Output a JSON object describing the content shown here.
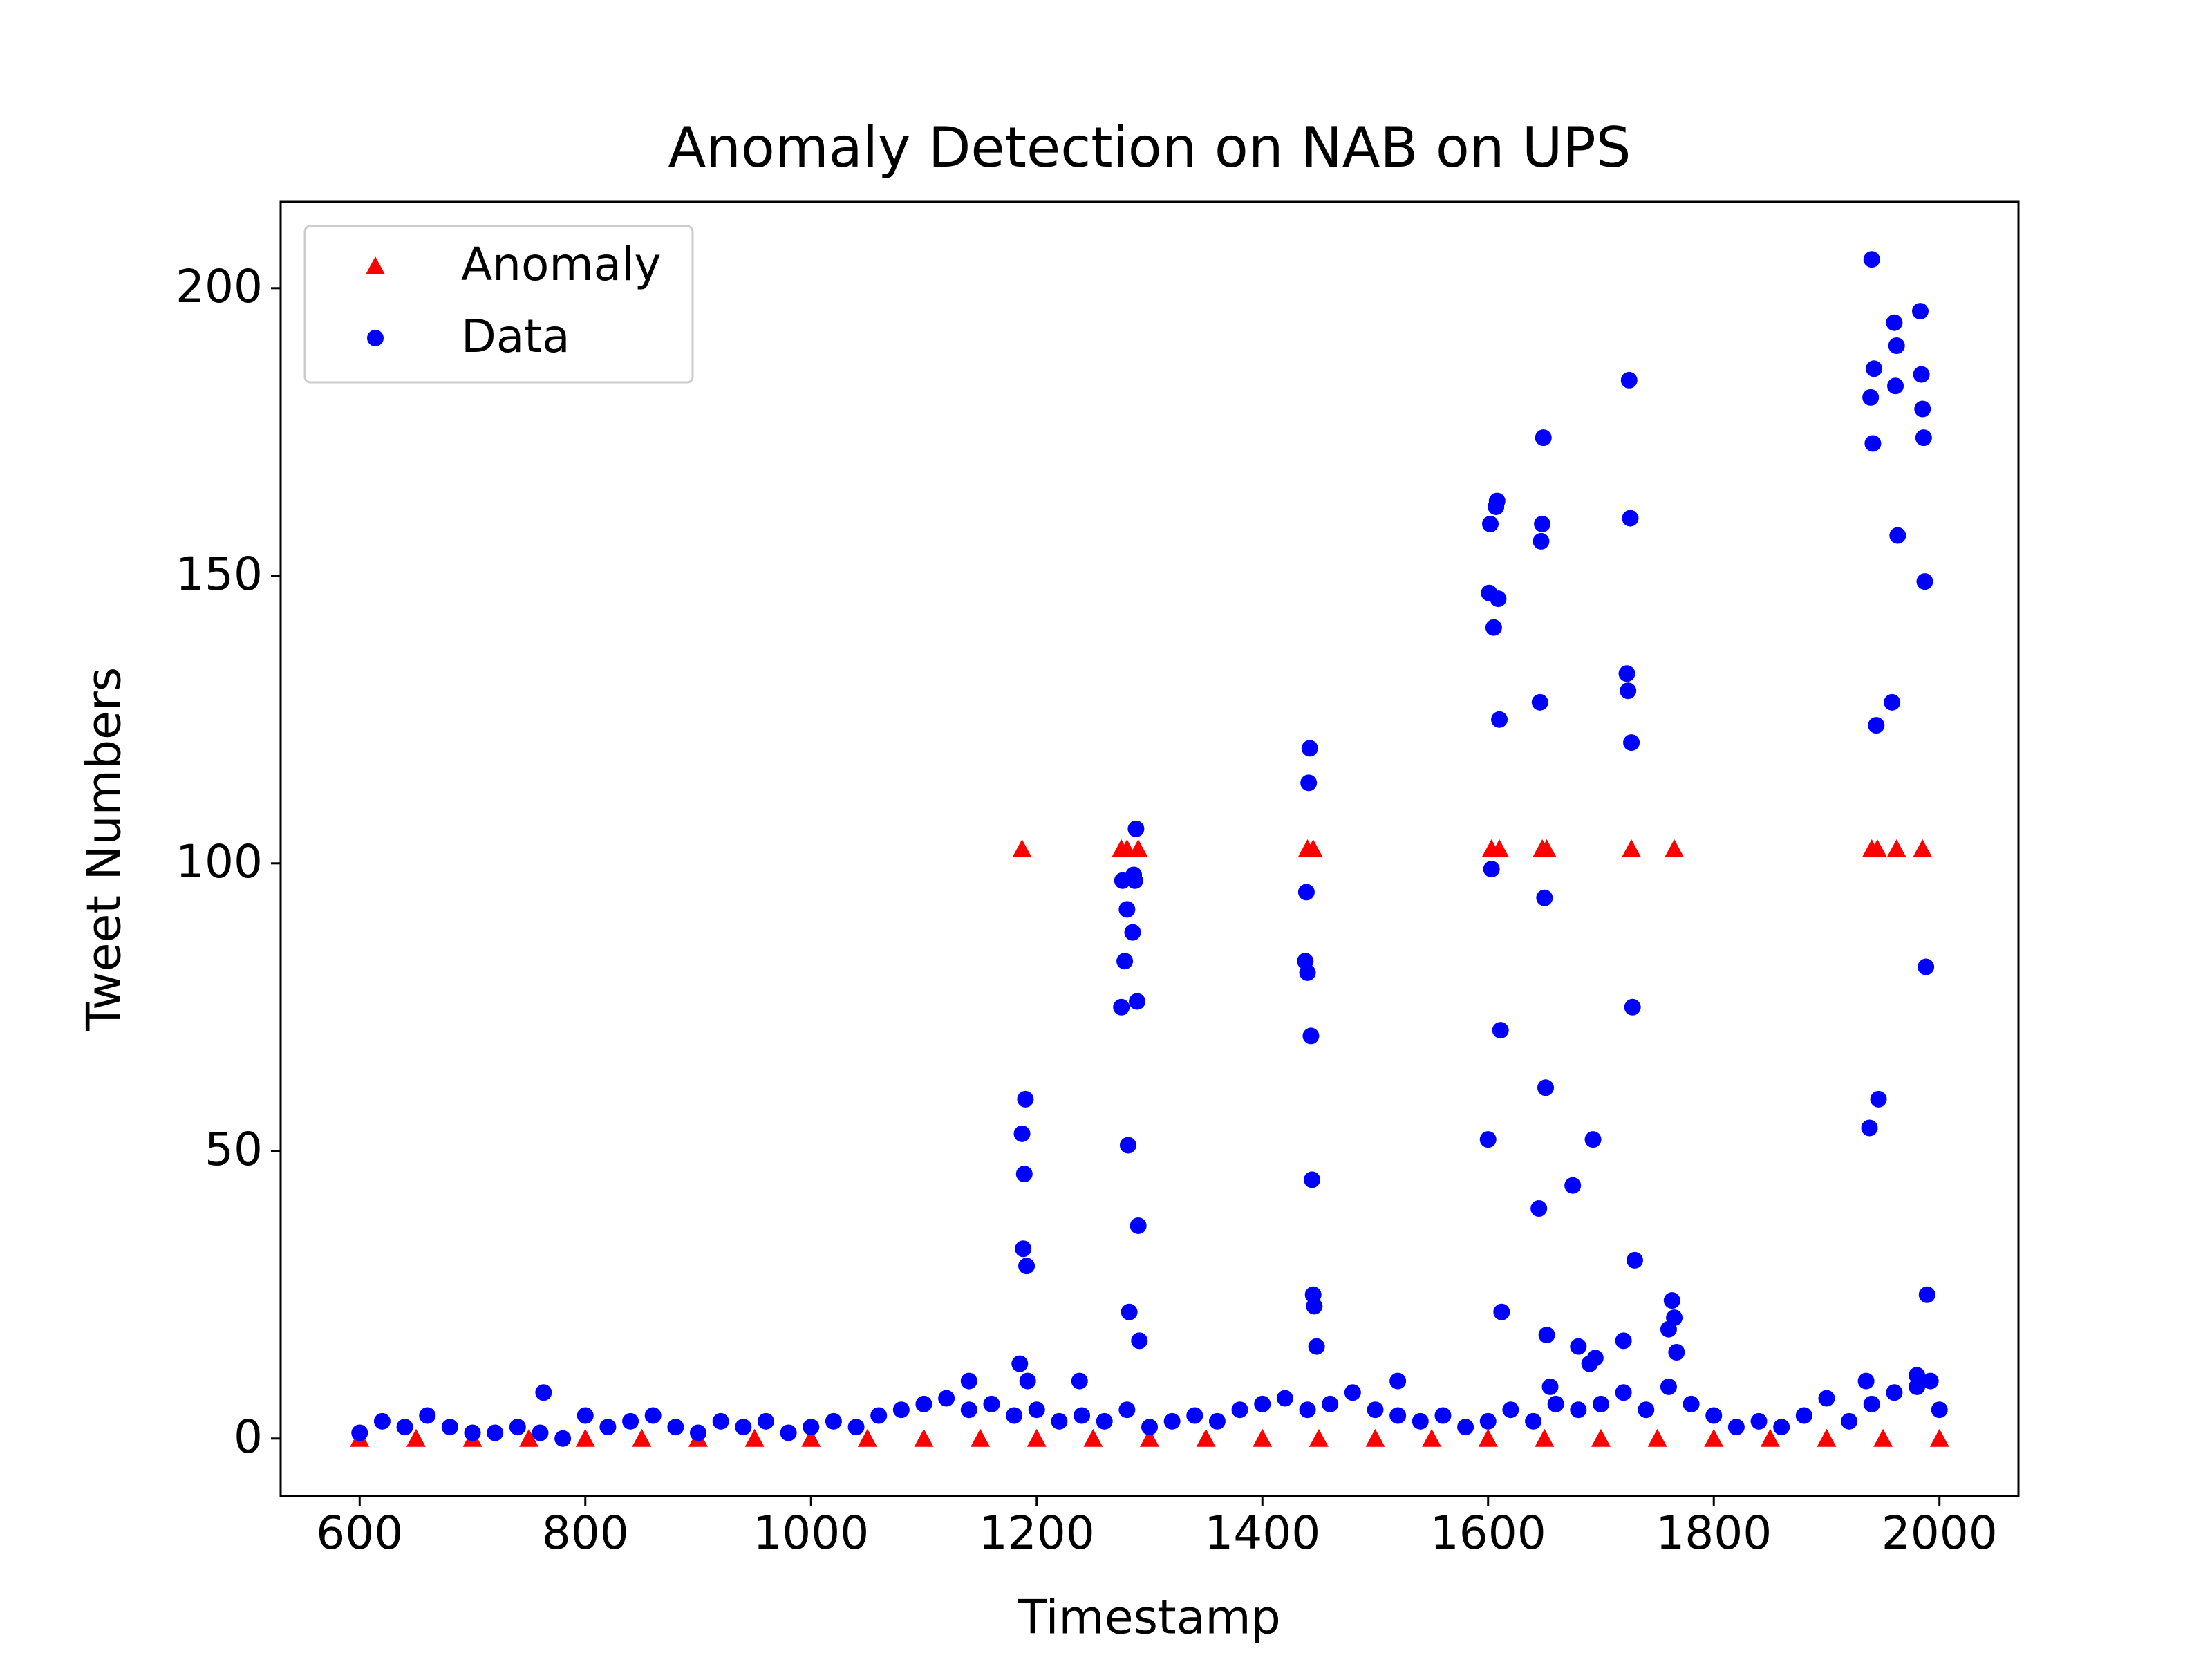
{
  "chart_data": {
    "type": "scatter",
    "title": "Anomaly Detection on NAB on UPS",
    "x_label": "Timestamp",
    "y_label": "Tweet Numbers",
    "xlim": [
      530,
      2070
    ],
    "ylim": [
      -10,
      215
    ],
    "xticks": [
      600,
      800,
      1000,
      1200,
      1400,
      1600,
      1800,
      2000
    ],
    "yticks": [
      0,
      50,
      100,
      150,
      200
    ],
    "grid": false,
    "legend": "upper left",
    "series": [
      {
        "name": "Anomaly",
        "color": "#ff0000",
        "marker": "triangle",
        "x": [
          600,
          650,
          700,
          750,
          800,
          850,
          900,
          950,
          1000,
          1050,
          1100,
          1150,
          1200,
          1250,
          1300,
          1350,
          1400,
          1450,
          1500,
          1550,
          1600,
          1650,
          1700,
          1750,
          1800,
          1850,
          1900,
          1950,
          2000,
          1187,
          1275,
          1280,
          1290,
          1440,
          1445,
          1603,
          1610,
          1648,
          1652,
          1727,
          1765,
          1940,
          1945,
          1962,
          1985
        ],
        "values": [
          0,
          0,
          0,
          0,
          0,
          0,
          0,
          0,
          0,
          0,
          0,
          0,
          0,
          0,
          0,
          0,
          0,
          0,
          0,
          0,
          0,
          0,
          0,
          0,
          0,
          0,
          0,
          0,
          0,
          102.5,
          102.5,
          102.5,
          102.5,
          102.5,
          102.5,
          102.5,
          102.5,
          102.5,
          102.5,
          102.5,
          102.5,
          102.5,
          102.5,
          102.5,
          102.5
        ]
      },
      {
        "name": "Data",
        "color": "#0000ff",
        "marker": "circle",
        "x": [
          600,
          620,
          640,
          660,
          680,
          700,
          720,
          740,
          760,
          780,
          800,
          820,
          840,
          860,
          880,
          900,
          920,
          940,
          960,
          980,
          1000,
          1020,
          1040,
          1060,
          1080,
          1100,
          1120,
          1140,
          1160,
          1180,
          1200,
          1220,
          1240,
          1260,
          1280,
          1300,
          1320,
          1340,
          1360,
          1380,
          1400,
          1420,
          1440,
          1460,
          1480,
          1500,
          1520,
          1540,
          1560,
          1580,
          1600,
          1620,
          1640,
          1660,
          1680,
          1700,
          1720,
          1740,
          1760,
          1780,
          1800,
          1820,
          1840,
          1860,
          1880,
          1900,
          1920,
          1940,
          1960,
          1980,
          2000,
          763,
          1238,
          1520,
          1140,
          1185,
          1187,
          1188,
          1189,
          1190,
          1191,
          1192,
          1275,
          1276,
          1278,
          1280,
          1281,
          1282,
          1285,
          1286,
          1287,
          1288,
          1289,
          1290,
          1291,
          1438,
          1439,
          1440,
          1441,
          1442,
          1443,
          1444,
          1445,
          1446,
          1448,
          1600,
          1601,
          1602,
          1603,
          1605,
          1607,
          1608,
          1609,
          1610,
          1611,
          1612,
          1645,
          1646,
          1647,
          1648,
          1649,
          1650,
          1651,
          1652,
          1655,
          1675,
          1680,
          1690,
          1693,
          1695,
          1720,
          1723,
          1724,
          1725,
          1726,
          1727,
          1728,
          1730,
          1760,
          1763,
          1765,
          1767,
          1935,
          1938,
          1939,
          1940,
          1941,
          1942,
          1944,
          1946,
          1958,
          1960,
          1961,
          1962,
          1963,
          1980,
          1983,
          1984,
          1985,
          1986,
          1987,
          1988,
          1989,
          1992
        ],
        "values": [
          1,
          3,
          2,
          4,
          2,
          1,
          1,
          2,
          1,
          0,
          4,
          2,
          3,
          4,
          2,
          1,
          3,
          2,
          3,
          1,
          2,
          3,
          2,
          4,
          5,
          6,
          7,
          5,
          6,
          4,
          5,
          3,
          4,
          3,
          5,
          2,
          3,
          4,
          3,
          5,
          6,
          7,
          5,
          6,
          8,
          5,
          4,
          3,
          4,
          2,
          3,
          5,
          3,
          6,
          5,
          6,
          8,
          5,
          9,
          6,
          4,
          2,
          3,
          2,
          4,
          7,
          3,
          6,
          8,
          9,
          5,
          8,
          10,
          10,
          10,
          13,
          53,
          33,
          46,
          59,
          30,
          10,
          75,
          97,
          83,
          92,
          51,
          22,
          88,
          98,
          97,
          106,
          76,
          37,
          17,
          83,
          95,
          81,
          114,
          120,
          70,
          45,
          25,
          23,
          16,
          52,
          147,
          159,
          99,
          141,
          162,
          163,
          146,
          125,
          71,
          22,
          40,
          128,
          156,
          159,
          174,
          94,
          61,
          18,
          9,
          44,
          16,
          13,
          52,
          14,
          17,
          133,
          130,
          184,
          160,
          121,
          75,
          31,
          19,
          24,
          21,
          15,
          10,
          54,
          181,
          205,
          173,
          186,
          124,
          59,
          128,
          194,
          183,
          190,
          157,
          11,
          196,
          185,
          179,
          174,
          149,
          82,
          25,
          10
        ]
      }
    ]
  }
}
